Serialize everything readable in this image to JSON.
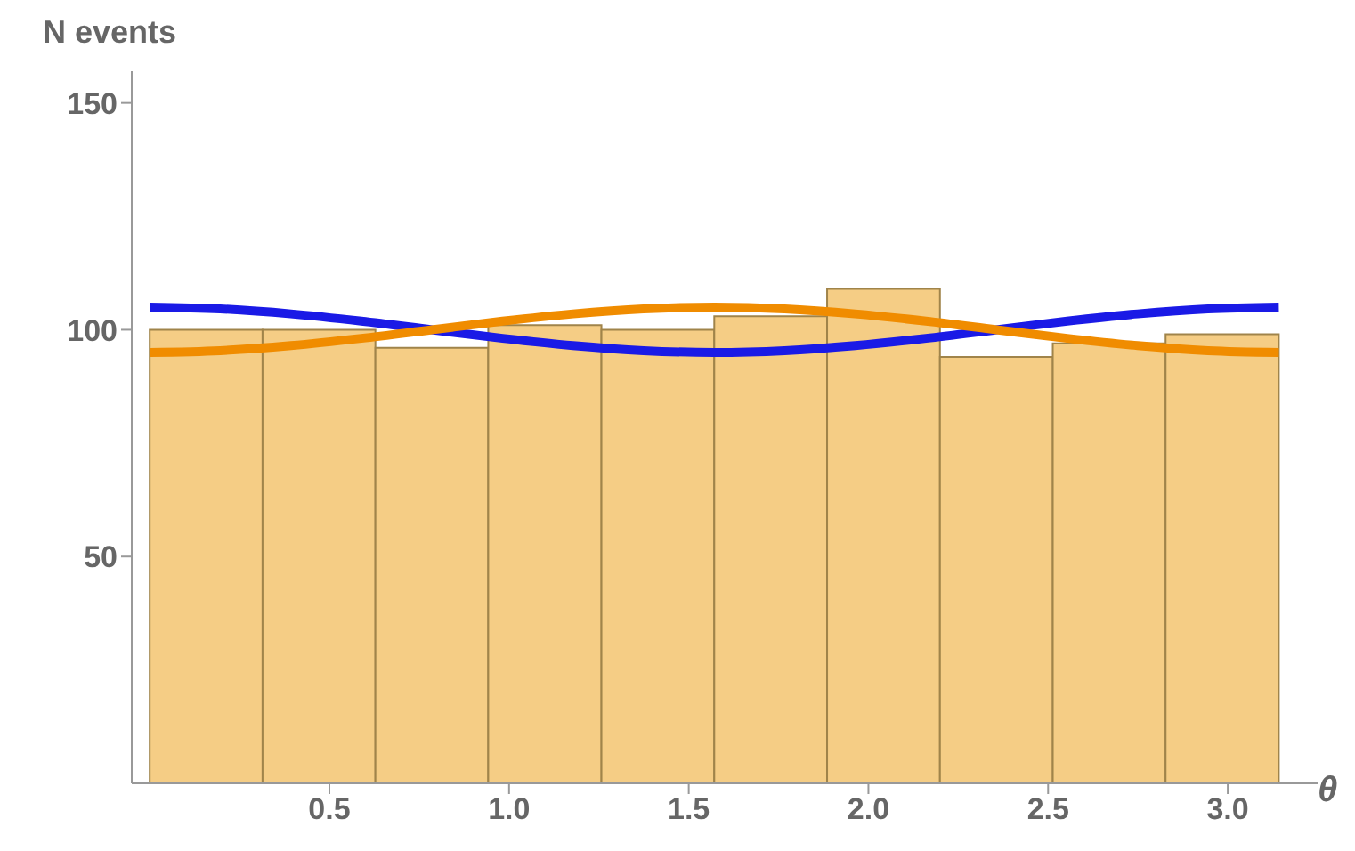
{
  "chart_data": {
    "type": "histogram",
    "xlabel": "θ",
    "ylabel": "N events",
    "bins": [
      0,
      0.314,
      0.628,
      0.942,
      1.257,
      1.571,
      1.885,
      2.199,
      2.513,
      2.827,
      3.142
    ],
    "values": [
      100,
      100,
      96,
      101,
      100,
      103,
      109,
      94,
      97,
      99
    ],
    "color": "#f5cd85",
    "series": [
      {
        "type": "line",
        "color": "#1a1ae6",
        "x": [
          0,
          0.196,
          0.393,
          0.589,
          0.785,
          0.982,
          1.178,
          1.374,
          1.571,
          1.767,
          1.963,
          2.16,
          2.356,
          2.553,
          2.749,
          2.945,
          3.142
        ],
        "values": [
          105,
          104.6,
          103.5,
          101.9,
          100,
          98.1,
          96.5,
          95.4,
          95,
          95.4,
          96.5,
          98.1,
          100,
          101.9,
          103.5,
          104.6,
          105
        ]
      },
      {
        "type": "line",
        "color": "#f08c00",
        "x": [
          0,
          0.196,
          0.393,
          0.589,
          0.785,
          0.982,
          1.178,
          1.374,
          1.571,
          1.767,
          1.963,
          2.16,
          2.356,
          2.553,
          2.749,
          2.945,
          3.142
        ],
        "values": [
          95,
          95.4,
          96.5,
          98.1,
          100,
          101.9,
          103.5,
          104.6,
          105,
          104.6,
          103.5,
          101.9,
          100,
          98.1,
          96.5,
          95.4,
          95
        ]
      }
    ],
    "xlim": [
      -0.05,
      3.25
    ],
    "xticks": [
      0.5,
      {
        "value": 1,
        "label": "1.0"
      },
      1.5,
      {
        "value": 2,
        "label": "2.0"
      },
      2.5,
      {
        "value": 3,
        "label": "3.0"
      }
    ],
    "ylim": [
      0,
      157
    ],
    "yticks": [
      50,
      100,
      150
    ],
    "grid": false
  }
}
